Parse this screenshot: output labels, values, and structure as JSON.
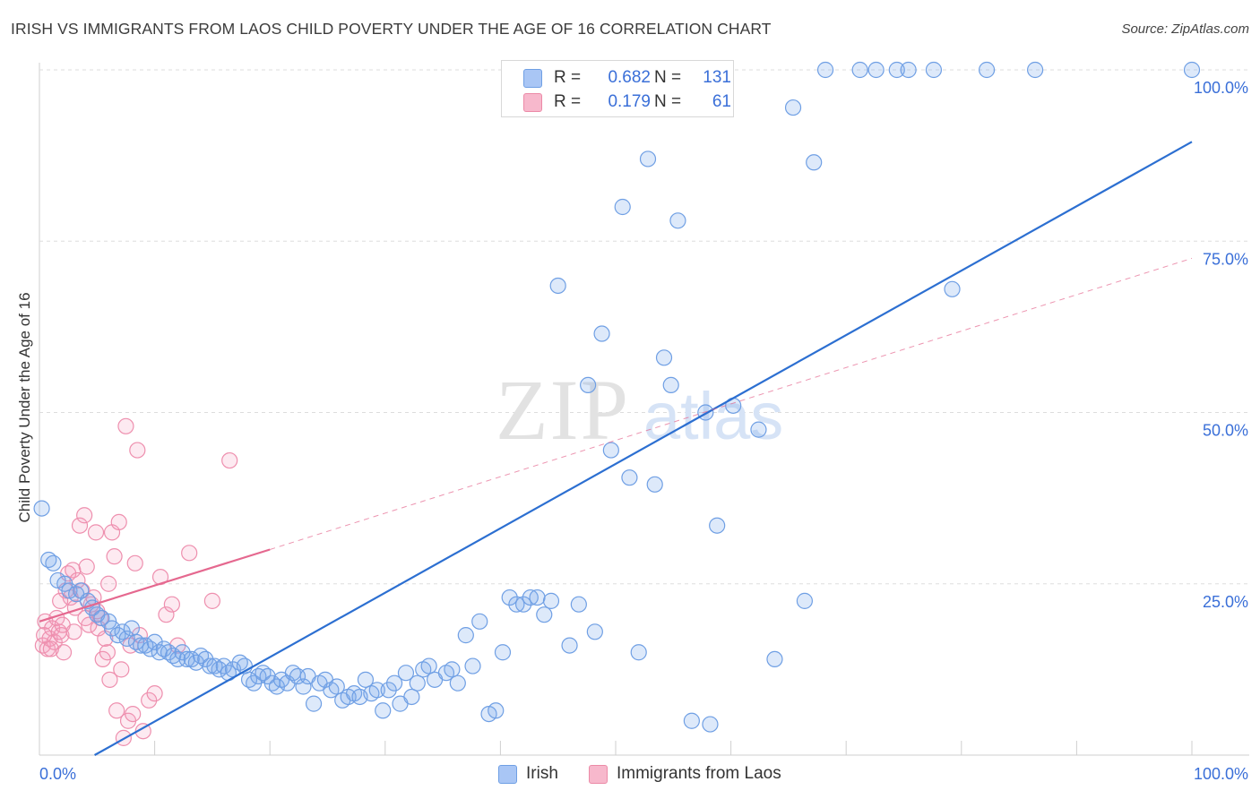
{
  "header": {
    "title": "IRISH VS IMMIGRANTS FROM LAOS CHILD POVERTY UNDER THE AGE OF 16 CORRELATION CHART",
    "source": "Source: ZipAtlas.com"
  },
  "watermark": {
    "zip": "ZIP",
    "atlas": "atlas"
  },
  "legend": {
    "r_label": "R =",
    "n_label": "N =",
    "entries": [
      {
        "name": "Irish",
        "r": "0.682",
        "n": "131",
        "color": "#a9c6f5",
        "stroke": "#6f9fe4"
      },
      {
        "name": "Immigrants from Laos",
        "r": "0.179",
        "n": "61",
        "color": "#f7b8cc",
        "stroke": "#ec8aa7"
      }
    ]
  },
  "colors": {
    "irish_fill": "rgba(120,166,236,0.25)",
    "irish_stroke": "#6f9fe4",
    "irish_line": "#2c6fd1",
    "laos_fill": "rgba(246,160,190,0.22)",
    "laos_stroke": "#ee8fae",
    "laos_line": "#e5688f",
    "tick_label": "#3a6fd8"
  },
  "chart_data": {
    "type": "scatter",
    "title": "IRISH VS IMMIGRANTS FROM LAOS CHILD POVERTY UNDER THE AGE OF 16 CORRELATION CHART",
    "xlabel": "",
    "ylabel": "Child Poverty Under the Age of 16",
    "xlim": [
      0,
      100
    ],
    "ylim": [
      0,
      100
    ],
    "x_tick_labels": [
      "0.0%",
      "100.0%"
    ],
    "y_tick_labels": [
      "25.0%",
      "50.0%",
      "75.0%",
      "100.0%"
    ],
    "y_ticks": [
      25,
      50,
      75,
      100
    ],
    "grid": true,
    "legend_position": "top-center",
    "series": [
      {
        "name": "Irish",
        "trend": {
          "x": [
            0,
            100
          ],
          "y": [
            -4.5,
            89.5
          ]
        },
        "points": [
          [
            0.2,
            36
          ],
          [
            0.8,
            28.5
          ],
          [
            1.2,
            28
          ],
          [
            1.6,
            25.5
          ],
          [
            2.2,
            25
          ],
          [
            2.6,
            24
          ],
          [
            3.2,
            23.5
          ],
          [
            3.6,
            24
          ],
          [
            4.2,
            22.5
          ],
          [
            4.6,
            21.5
          ],
          [
            5.0,
            20.5
          ],
          [
            5.4,
            20
          ],
          [
            6.0,
            19.5
          ],
          [
            6.3,
            18.5
          ],
          [
            6.8,
            17.5
          ],
          [
            7.2,
            18
          ],
          [
            7.6,
            17
          ],
          [
            8.0,
            18.5
          ],
          [
            8.4,
            16.5
          ],
          [
            8.8,
            16
          ],
          [
            9.2,
            16
          ],
          [
            9.6,
            15.5
          ],
          [
            10.0,
            16.5
          ],
          [
            10.4,
            15
          ],
          [
            10.8,
            15.5
          ],
          [
            11.2,
            15
          ],
          [
            11.6,
            14.5
          ],
          [
            12.0,
            14
          ],
          [
            12.4,
            15
          ],
          [
            12.8,
            14
          ],
          [
            13.2,
            14
          ],
          [
            13.6,
            13.5
          ],
          [
            14.0,
            14.5
          ],
          [
            14.4,
            14
          ],
          [
            14.8,
            13
          ],
          [
            15.2,
            13
          ],
          [
            15.6,
            12.5
          ],
          [
            16.0,
            13
          ],
          [
            16.4,
            12
          ],
          [
            16.8,
            12.5
          ],
          [
            17.4,
            13.5
          ],
          [
            17.8,
            13
          ],
          [
            18.2,
            11
          ],
          [
            18.6,
            10.5
          ],
          [
            19.0,
            11.5
          ],
          [
            19.4,
            12
          ],
          [
            19.8,
            11.5
          ],
          [
            20.2,
            10.5
          ],
          [
            20.6,
            10
          ],
          [
            21.0,
            11
          ],
          [
            21.5,
            10.5
          ],
          [
            22.0,
            12
          ],
          [
            22.4,
            11.5
          ],
          [
            22.9,
            10
          ],
          [
            23.3,
            11.5
          ],
          [
            23.8,
            7.5
          ],
          [
            24.3,
            10.5
          ],
          [
            24.8,
            11
          ],
          [
            25.3,
            9.5
          ],
          [
            25.8,
            10
          ],
          [
            26.3,
            8
          ],
          [
            26.8,
            8.5
          ],
          [
            27.3,
            9
          ],
          [
            27.8,
            8.5
          ],
          [
            28.3,
            11
          ],
          [
            28.8,
            9
          ],
          [
            29.3,
            9.5
          ],
          [
            29.8,
            6.5
          ],
          [
            30.3,
            9.5
          ],
          [
            30.8,
            10.5
          ],
          [
            31.3,
            7.5
          ],
          [
            31.8,
            12
          ],
          [
            32.3,
            8.5
          ],
          [
            32.8,
            10.5
          ],
          [
            33.3,
            12.5
          ],
          [
            33.8,
            13
          ],
          [
            34.3,
            11
          ],
          [
            35.3,
            12
          ],
          [
            35.8,
            12.5
          ],
          [
            36.3,
            10.5
          ],
          [
            37.0,
            17.5
          ],
          [
            37.6,
            13
          ],
          [
            38.2,
            19.5
          ],
          [
            39.0,
            6
          ],
          [
            39.6,
            6.5
          ],
          [
            40.2,
            15
          ],
          [
            40.8,
            23
          ],
          [
            41.4,
            22
          ],
          [
            42.0,
            22
          ],
          [
            42.6,
            23
          ],
          [
            43.2,
            23
          ],
          [
            43.8,
            20.5
          ],
          [
            44.4,
            22.5
          ],
          [
            45.0,
            68.5
          ],
          [
            46.0,
            16
          ],
          [
            46.8,
            22
          ],
          [
            47.6,
            54
          ],
          [
            48.2,
            18
          ],
          [
            48.8,
            61.5
          ],
          [
            49.6,
            44.5
          ],
          [
            50.6,
            80
          ],
          [
            51.2,
            40.5
          ],
          [
            52.0,
            15
          ],
          [
            52.8,
            87
          ],
          [
            53.4,
            39.5
          ],
          [
            54.2,
            58
          ],
          [
            54.8,
            54
          ],
          [
            55.4,
            78
          ],
          [
            56.6,
            5
          ],
          [
            57.8,
            50
          ],
          [
            58.2,
            4.5
          ],
          [
            58.8,
            33.5
          ],
          [
            60.2,
            51
          ],
          [
            62.4,
            47.5
          ],
          [
            63.8,
            14
          ],
          [
            65.4,
            94.5
          ],
          [
            66.4,
            22.5
          ],
          [
            67.2,
            86.5
          ],
          [
            68.2,
            100
          ],
          [
            71.2,
            100
          ],
          [
            72.6,
            100
          ],
          [
            74.4,
            100
          ],
          [
            75.4,
            100
          ],
          [
            77.6,
            100
          ],
          [
            79.2,
            68
          ],
          [
            82.2,
            100
          ],
          [
            86.4,
            100
          ],
          [
            100,
            100
          ],
          [
            46.6,
            100
          ]
        ]
      },
      {
        "name": "Immigrants from Laos",
        "trend": {
          "x": [
            0,
            20
          ],
          "y": [
            19.5,
            30
          ]
        },
        "trend_extended": {
          "x": [
            20,
            100
          ],
          "y": [
            30,
            72.5
          ]
        },
        "points": [
          [
            0.3,
            16
          ],
          [
            0.5,
            19.5
          ],
          [
            0.7,
            15.5
          ],
          [
            0.9,
            17
          ],
          [
            1.1,
            18.5
          ],
          [
            1.3,
            16.5
          ],
          [
            1.5,
            20
          ],
          [
            1.7,
            18
          ],
          [
            1.9,
            17.5
          ],
          [
            2.1,
            15
          ],
          [
            2.3,
            24
          ],
          [
            2.5,
            26.5
          ],
          [
            2.7,
            23
          ],
          [
            2.9,
            27
          ],
          [
            3.1,
            21.5
          ],
          [
            3.3,
            25.5
          ],
          [
            3.5,
            33.5
          ],
          [
            3.7,
            24
          ],
          [
            3.9,
            35
          ],
          [
            4.1,
            27.5
          ],
          [
            4.3,
            19
          ],
          [
            4.5,
            22
          ],
          [
            4.7,
            23
          ],
          [
            4.9,
            32.5
          ],
          [
            5.1,
            18.5
          ],
          [
            5.3,
            20
          ],
          [
            5.5,
            14
          ],
          [
            5.7,
            17
          ],
          [
            5.9,
            15
          ],
          [
            6.1,
            11
          ],
          [
            6.3,
            32.5
          ],
          [
            6.5,
            29
          ],
          [
            6.7,
            6.5
          ],
          [
            6.9,
            34
          ],
          [
            7.1,
            12.5
          ],
          [
            7.3,
            2.5
          ],
          [
            7.5,
            48
          ],
          [
            7.7,
            5
          ],
          [
            7.9,
            16
          ],
          [
            8.1,
            6
          ],
          [
            8.3,
            28
          ],
          [
            8.5,
            44.5
          ],
          [
            8.7,
            17.5
          ],
          [
            9.0,
            3.5
          ],
          [
            9.5,
            8
          ],
          [
            10.0,
            9
          ],
          [
            10.5,
            26
          ],
          [
            11.0,
            20.5
          ],
          [
            11.5,
            22
          ],
          [
            12.0,
            16
          ],
          [
            13.0,
            29.5
          ],
          [
            15.0,
            22.5
          ],
          [
            16.5,
            43
          ],
          [
            1.0,
            15.5
          ],
          [
            2.0,
            19
          ],
          [
            3.0,
            18
          ],
          [
            4.0,
            20
          ],
          [
            5.0,
            21
          ],
          [
            6.0,
            25
          ],
          [
            1.8,
            22.5
          ],
          [
            0.4,
            17.5
          ]
        ]
      }
    ]
  }
}
